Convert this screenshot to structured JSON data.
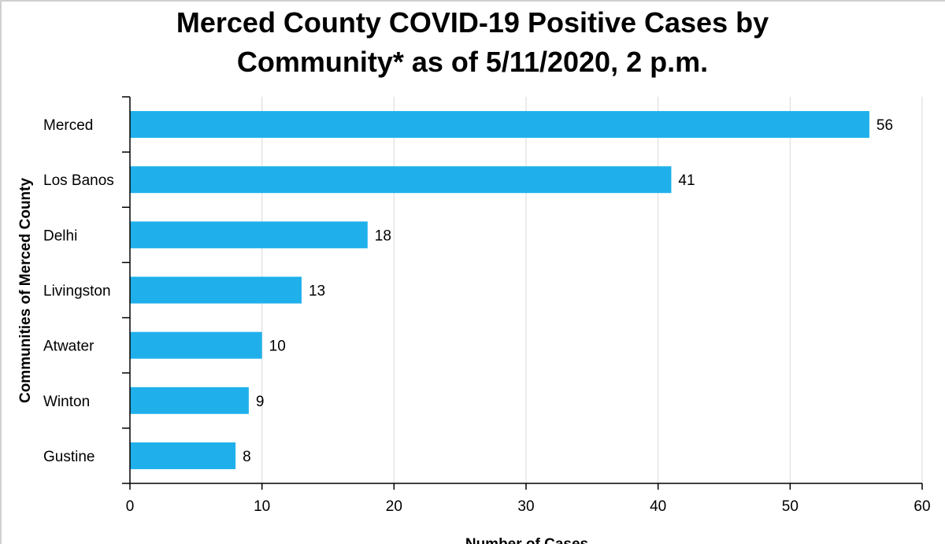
{
  "chart_data": {
    "type": "bar",
    "orientation": "horizontal",
    "title_lines": [
      "Merced County COVID-19 Positive Cases by",
      "Community* as of 5/11/2020, 2 p.m."
    ],
    "xlabel": "Number of Cases",
    "ylabel": "Communities of Merced County",
    "categories": [
      "Merced",
      "Los Banos",
      "Delhi",
      "Livingston",
      "Atwater",
      "Winton",
      "Gustine"
    ],
    "values": [
      56,
      41,
      18,
      13,
      10,
      9,
      8
    ],
    "xlim": [
      0,
      60
    ],
    "xticks": [
      0,
      10,
      20,
      30,
      40,
      50,
      60
    ],
    "grid": "vertical",
    "legend": "none",
    "bar_color": "#1fb0eb"
  }
}
